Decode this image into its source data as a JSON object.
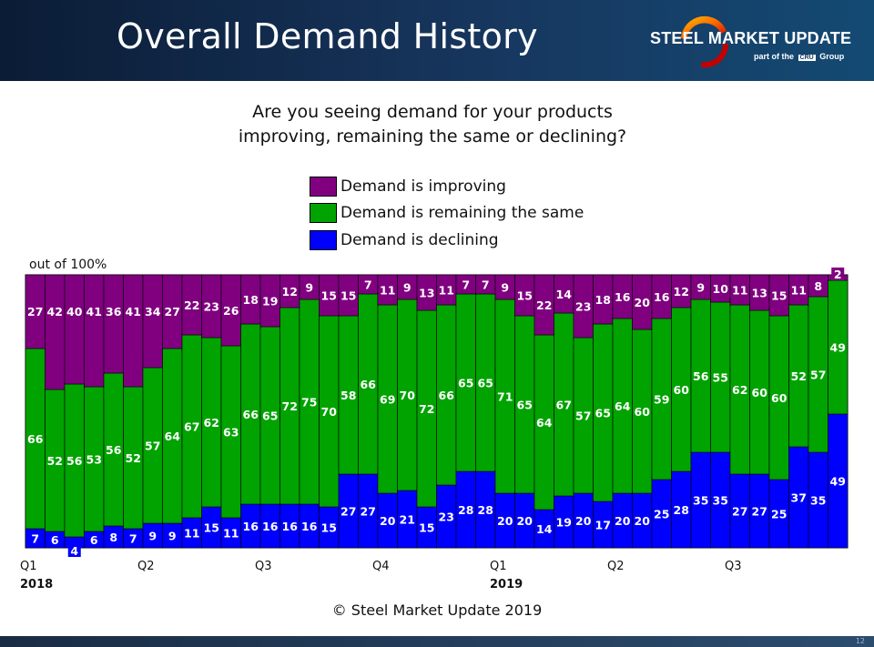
{
  "header": {
    "title": "Overall Demand History",
    "logo_text": "STEEL MARKET UPDATE",
    "logo_sub_prefix": "part of the",
    "logo_sub_box": "CRU",
    "logo_sub_suffix": "Group",
    "page_number": "12"
  },
  "question": {
    "line1": "Are you seeing demand for your products",
    "line2": "improving, remaining the same or declining?"
  },
  "copyright": "© Steel Market Update 2019",
  "colors": {
    "improving": "#800080",
    "same": "#00a300",
    "declining": "#0000ff"
  },
  "chart_data": {
    "type": "bar",
    "stacked": true,
    "title": "Are you seeing demand for your products improving, remaining the same or declining?",
    "ylabel": "out of 100%",
    "ylim": [
      0,
      100
    ],
    "x_tick_labels": [
      {
        "label": "Q1",
        "index": 0
      },
      {
        "label": "Q2",
        "index": 6
      },
      {
        "label": "Q3",
        "index": 12
      },
      {
        "label": "Q4",
        "index": 18
      },
      {
        "label": "Q1",
        "index": 24
      },
      {
        "label": "Q2",
        "index": 30
      },
      {
        "label": "Q3",
        "index": 36
      }
    ],
    "year_labels": [
      {
        "label": "2018",
        "index": 0
      },
      {
        "label": "2019",
        "index": 24
      }
    ],
    "legend": [
      {
        "name": "Demand is improving",
        "key": "improving"
      },
      {
        "name": "Demand is remaining the same",
        "key": "same"
      },
      {
        "name": "Demand is declining",
        "key": "declining"
      }
    ],
    "series": [
      {
        "name": "Demand is declining",
        "key": "declining",
        "values": [
          7,
          6,
          4,
          6,
          8,
          7,
          9,
          9,
          11,
          15,
          11,
          16,
          16,
          16,
          16,
          15,
          27,
          27,
          20,
          21,
          15,
          23,
          28,
          28,
          20,
          20,
          14,
          19,
          20,
          17,
          20,
          20,
          25,
          28,
          35,
          35,
          27,
          27,
          25,
          37,
          35,
          49
        ]
      },
      {
        "name": "Demand is remaining the same",
        "key": "same",
        "values": [
          66,
          52,
          56,
          53,
          56,
          52,
          57,
          64,
          67,
          62,
          63,
          66,
          65,
          72,
          75,
          70,
          58,
          66,
          69,
          70,
          72,
          66,
          65,
          65,
          71,
          65,
          64,
          67,
          57,
          65,
          64,
          60,
          59,
          60,
          56,
          55,
          62,
          60,
          60,
          52,
          57,
          49
        ]
      },
      {
        "name": "Demand is improving",
        "key": "improving",
        "values": [
          27,
          42,
          40,
          41,
          36,
          41,
          34,
          27,
          22,
          23,
          26,
          18,
          19,
          12,
          9,
          15,
          15,
          7,
          11,
          9,
          13,
          11,
          7,
          7,
          9,
          15,
          22,
          14,
          23,
          18,
          16,
          20,
          16,
          12,
          9,
          10,
          11,
          13,
          15,
          11,
          8,
          2
        ]
      }
    ]
  }
}
